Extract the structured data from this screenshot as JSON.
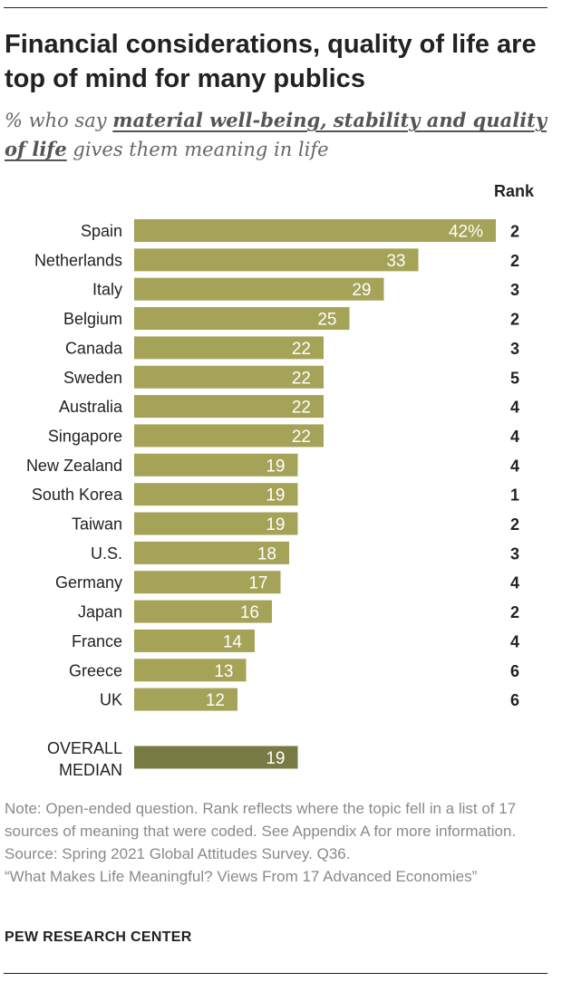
{
  "title": "Financial considerations, quality of life are top of mind for many publics",
  "subtitle": {
    "prefix": "% who say ",
    "emphasis": "material well-being, stability and quality of life",
    "suffix": " gives them meaning in life"
  },
  "rank_header": "Rank",
  "colors": {
    "bar": "#a4a358",
    "median_bar": "#787a43",
    "bar_label": "#ffffff",
    "text": "#222222",
    "note": "#8a8a8a"
  },
  "chart_data": {
    "type": "bar",
    "orientation": "horizontal",
    "categories": [
      "Spain",
      "Netherlands",
      "Italy",
      "Belgium",
      "Canada",
      "Sweden",
      "Australia",
      "Singapore",
      "New Zealand",
      "South Korea",
      "Taiwan",
      "U.S.",
      "Germany",
      "Japan",
      "France",
      "Greece",
      "UK"
    ],
    "values": [
      42,
      33,
      29,
      25,
      22,
      22,
      22,
      22,
      19,
      19,
      19,
      18,
      17,
      16,
      14,
      13,
      12
    ],
    "value_labels": [
      "42%",
      "33",
      "29",
      "25",
      "22",
      "22",
      "22",
      "22",
      "19",
      "19",
      "19",
      "18",
      "17",
      "16",
      "14",
      "13",
      "12"
    ],
    "ranks": [
      "2",
      "2",
      "3",
      "2",
      "3",
      "5",
      "4",
      "4",
      "4",
      "1",
      "2",
      "3",
      "4",
      "2",
      "4",
      "6",
      "6"
    ],
    "median": {
      "label_lines": [
        "OVERALL",
        "MEDIAN"
      ],
      "value": 19,
      "value_label": "19"
    },
    "xlim": [
      0,
      42
    ],
    "grid": false,
    "legend": "none"
  },
  "notes": {
    "note": "Note: Open-ended question. Rank reflects where the topic fell in a list of 17 sources of meaning that were coded. See Appendix A for more information.",
    "source": "Source: Spring 2021 Global Attitudes Survey. Q36.",
    "report": "“What Makes Life Meaningful? Views From 17 Advanced Economies”"
  },
  "brand": "PEW RESEARCH CENTER"
}
